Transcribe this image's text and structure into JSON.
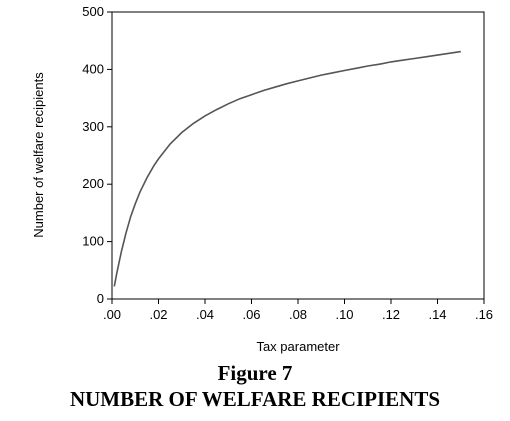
{
  "chart_data": {
    "type": "line",
    "title": "",
    "xlabel": "Tax parameter",
    "ylabel": "Number of welfare recipients",
    "xlim": [
      0,
      0.16
    ],
    "ylim": [
      0,
      500
    ],
    "grid": false,
    "legend": "none",
    "line_color": "#555555",
    "x_ticks": [
      {
        "value": 0.0,
        "label": ".00"
      },
      {
        "value": 0.02,
        "label": ".02"
      },
      {
        "value": 0.04,
        "label": ".04"
      },
      {
        "value": 0.06,
        "label": ".06"
      },
      {
        "value": 0.08,
        "label": ".08"
      },
      {
        "value": 0.1,
        "label": ".10"
      },
      {
        "value": 0.12,
        "label": ".12"
      },
      {
        "value": 0.14,
        "label": ".14"
      },
      {
        "value": 0.16,
        "label": ".16"
      }
    ],
    "y_ticks": [
      {
        "value": 0,
        "label": "0"
      },
      {
        "value": 100,
        "label": "100"
      },
      {
        "value": 200,
        "label": "200"
      },
      {
        "value": 300,
        "label": "300"
      },
      {
        "value": 400,
        "label": "400"
      },
      {
        "value": 500,
        "label": "500"
      }
    ],
    "series": [
      {
        "x": [
          0.001,
          0.002,
          0.004,
          0.006,
          0.008,
          0.01,
          0.012,
          0.015,
          0.018,
          0.02,
          0.025,
          0.03,
          0.035,
          0.04,
          0.045,
          0.05,
          0.055,
          0.06,
          0.065,
          0.07,
          0.075,
          0.08,
          0.085,
          0.09,
          0.095,
          0.1,
          0.105,
          0.11,
          0.115,
          0.12,
          0.125,
          0.13,
          0.135,
          0.14,
          0.145,
          0.15
        ],
        "y": [
          22,
          44,
          82,
          115,
          143,
          166,
          186,
          211,
          232,
          244,
          270,
          290,
          306,
          319,
          330,
          340,
          349,
          356,
          363,
          369,
          375,
          380,
          385,
          390,
          394,
          398,
          402,
          406,
          409,
          413,
          416,
          419,
          422,
          425,
          428,
          431
        ]
      }
    ]
  },
  "caption": {
    "figure_number": "Figure 7",
    "figure_title": "NUMBER OF WELFARE RECIPIENTS"
  }
}
